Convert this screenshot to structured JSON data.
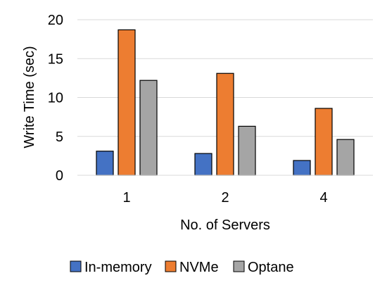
{
  "chart_data": {
    "type": "bar",
    "title": "",
    "xlabel": "No. of Servers",
    "ylabel": "Write Time (sec)",
    "categories": [
      "1",
      "2",
      "4"
    ],
    "ylim": [
      0,
      20
    ],
    "yticks": [
      0,
      5,
      10,
      15,
      20
    ],
    "grid": true,
    "legend_position": "bottom",
    "series": [
      {
        "name": "In-memory",
        "color": "#4472C4",
        "values": [
          3.1,
          2.8,
          1.9
        ]
      },
      {
        "name": "NVMe",
        "color": "#ED7D31",
        "values": [
          18.7,
          13.1,
          8.6
        ]
      },
      {
        "name": "Optane",
        "color": "#A5A5A5",
        "values": [
          12.2,
          6.3,
          4.6
        ]
      }
    ]
  }
}
